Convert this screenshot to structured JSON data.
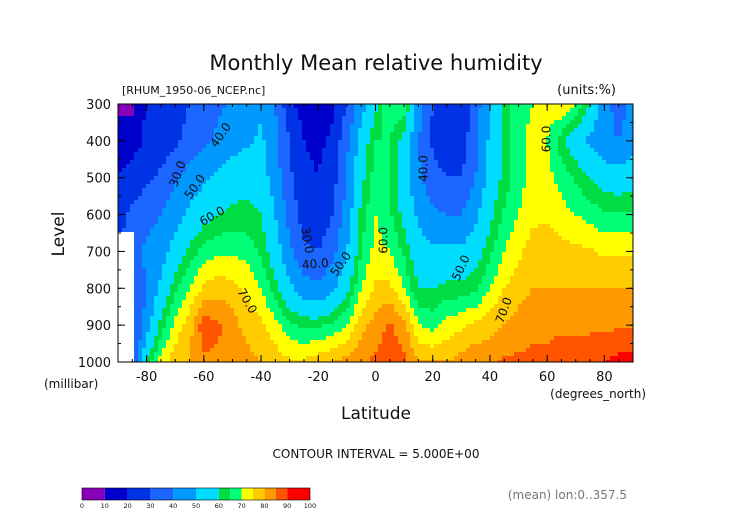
{
  "chart_data": {
    "type": "heatmap",
    "title": "Monthly Mean relative humidity",
    "source_label": "[RHUM_1950-06_NCEP.nc]",
    "units_label": "(units:%)",
    "xlabel": "Latitude",
    "ylabel": "Level",
    "x_unit_label": "(degrees_north)",
    "y_unit_label": "(millibar)",
    "xlim": [
      -90,
      90
    ],
    "ylim": [
      1000,
      300
    ],
    "x_ticks": [
      {
        "value": -80,
        "label": "-80"
      },
      {
        "value": -60,
        "label": "-60"
      },
      {
        "value": -40,
        "label": "-40"
      },
      {
        "value": -20,
        "label": "-20"
      },
      {
        "value": 0,
        "label": "0"
      },
      {
        "value": 20,
        "label": "20"
      },
      {
        "value": 40,
        "label": "40"
      },
      {
        "value": 60,
        "label": "60"
      },
      {
        "value": 80,
        "label": "80"
      }
    ],
    "y_ticks": [
      {
        "value": 300,
        "label": "300"
      },
      {
        "value": 400,
        "label": "400"
      },
      {
        "value": 500,
        "label": "500"
      },
      {
        "value": 600,
        "label": "600"
      },
      {
        "value": 700,
        "label": "700"
      },
      {
        "value": 800,
        "label": "800"
      },
      {
        "value": 900,
        "label": "900"
      },
      {
        "value": 1000,
        "label": "1000"
      }
    ],
    "lat": [
      -90,
      -85,
      -80,
      -75,
      -70,
      -65,
      -60,
      -55,
      -50,
      -45,
      -40,
      -35,
      -30,
      -25,
      -20,
      -15,
      -10,
      -5,
      0,
      5,
      10,
      15,
      20,
      25,
      30,
      35,
      40,
      45,
      50,
      55,
      60,
      65,
      70,
      75,
      80,
      85,
      90
    ],
    "levels": [
      300,
      400,
      500,
      600,
      700,
      800,
      900,
      1000
    ],
    "rh": [
      [
        8,
        8,
        22,
        22,
        24,
        30,
        34,
        38,
        42,
        45,
        48,
        40,
        22,
        16,
        14,
        18,
        30,
        45,
        58,
        70,
        68,
        45,
        30,
        20,
        22,
        35,
        50,
        62,
        68,
        70,
        72,
        75,
        70,
        60,
        45,
        35,
        45
      ],
      [
        15,
        15,
        22,
        24,
        28,
        34,
        38,
        42,
        46,
        48,
        52,
        42,
        30,
        20,
        18,
        22,
        38,
        55,
        65,
        65,
        58,
        40,
        28,
        22,
        24,
        38,
        52,
        62,
        68,
        72,
        70,
        62,
        55,
        48,
        42,
        40,
        45
      ],
      [
        20,
        25,
        28,
        32,
        38,
        44,
        48,
        52,
        55,
        58,
        55,
        45,
        32,
        22,
        20,
        26,
        40,
        58,
        68,
        65,
        55,
        42,
        34,
        30,
        30,
        40,
        55,
        62,
        68,
        72,
        72,
        68,
        64,
        60,
        56,
        55,
        57
      ],
      [
        26,
        32,
        36,
        40,
        46,
        52,
        57,
        60,
        62,
        62,
        60,
        50,
        36,
        26,
        24,
        30,
        45,
        62,
        70,
        66,
        58,
        48,
        42,
        40,
        40,
        48,
        58,
        66,
        70,
        74,
        74,
        72,
        70,
        68,
        66,
        66,
        66
      ],
      [
        28,
        38,
        42,
        46,
        54,
        62,
        67,
        69,
        69,
        68,
        64,
        55,
        42,
        32,
        30,
        36,
        50,
        65,
        72,
        70,
        64,
        54,
        52,
        52,
        52,
        56,
        64,
        70,
        74,
        77,
        78,
        77,
        76,
        76,
        74,
        74,
        74
      ],
      [
        5,
        30,
        40,
        52,
        64,
        70,
        76,
        78,
        77,
        74,
        70,
        62,
        52,
        44,
        42,
        48,
        58,
        70,
        76,
        76,
        70,
        60,
        60,
        62,
        62,
        64,
        70,
        75,
        78,
        80,
        80,
        80,
        80,
        80,
        80,
        80,
        80
      ],
      [
        5,
        25,
        45,
        62,
        72,
        78,
        88,
        86,
        82,
        78,
        76,
        72,
        66,
        64,
        64,
        66,
        70,
        78,
        82,
        86,
        82,
        70,
        68,
        72,
        74,
        76,
        78,
        80,
        82,
        84,
        84,
        84,
        84,
        84,
        84,
        84,
        84
      ],
      [
        5,
        30,
        62,
        72,
        78,
        80,
        84,
        84,
        84,
        82,
        80,
        78,
        76,
        76,
        78,
        80,
        82,
        84,
        86,
        88,
        86,
        80,
        80,
        80,
        82,
        84,
        84,
        86,
        86,
        86,
        86,
        88,
        88,
        88,
        90,
        92,
        92
      ]
    ],
    "contour_interval_text": "CONTOUR INTERVAL = 5.000E+00",
    "contour_labels": [
      {
        "text": "30.0",
        "lat": -69,
        "lev": 490,
        "angle": -70
      },
      {
        "text": "40.0",
        "lat": -54,
        "lev": 385,
        "angle": -55
      },
      {
        "text": "50.0",
        "lat": -63,
        "lev": 525,
        "angle": -55
      },
      {
        "text": "60.0",
        "lat": -57,
        "lev": 605,
        "angle": -30
      },
      {
        "text": "70.0",
        "lat": -45,
        "lev": 835,
        "angle": 60
      },
      {
        "text": "30.0",
        "lat": -24,
        "lev": 670,
        "angle": 80
      },
      {
        "text": "40.0",
        "lat": -21,
        "lev": 735,
        "angle": -5
      },
      {
        "text": "50.0",
        "lat": -12,
        "lev": 735,
        "angle": -55
      },
      {
        "text": "60.0",
        "lat": 3,
        "lev": 670,
        "angle": -90
      },
      {
        "text": "40.0",
        "lat": 17,
        "lev": 475,
        "angle": -90
      },
      {
        "text": "50.0",
        "lat": 30,
        "lev": 745,
        "angle": -65
      },
      {
        "text": "70.0",
        "lat": 45,
        "lev": 860,
        "angle": -70
      },
      {
        "text": "60.0",
        "lat": 60,
        "lev": 395,
        "angle": -90
      }
    ],
    "legend": {
      "placement": "bottom-left",
      "colors": [
        "#8800b8",
        "#0000cc",
        "#0033e6",
        "#1a66ff",
        "#0099ff",
        "#00ddff",
        "#00dd44",
        "#00ff77",
        "#ffff00",
        "#ffcc00",
        "#ff9900",
        "#ff5500",
        "#ff0000"
      ],
      "bins": [
        0,
        10,
        20,
        30,
        40,
        50,
        60,
        65,
        70,
        75,
        80,
        85,
        90,
        100
      ],
      "tick_labels": [
        "0",
        "10",
        "20",
        "30",
        "40",
        "50",
        "60",
        "70",
        "80",
        "90",
        "100"
      ]
    },
    "footnote": "(mean) lon:0..357.5",
    "missing_region": "lat <= -85, lev >= 650 (white)"
  }
}
